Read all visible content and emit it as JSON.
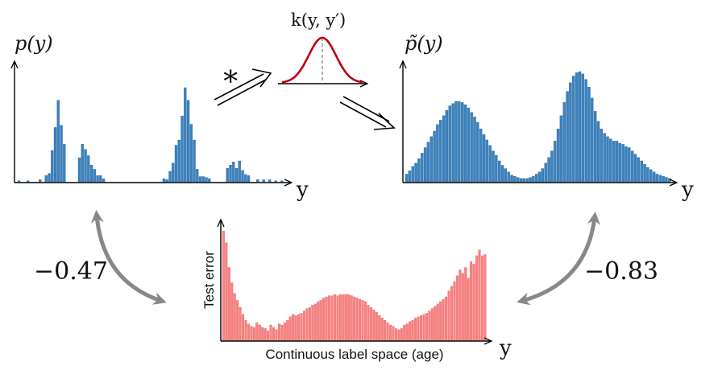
{
  "labels": {
    "p_y": "p(y)",
    "p_tilde_y": "p̃(y)",
    "kernel": "k(y, y′)",
    "convolution": "∗",
    "y_axis_symbol": "y",
    "corr_left": "−0.47",
    "corr_right": "−0.83",
    "error_ylabel": "Test error",
    "error_xlabel": "Continuous label space (age)"
  },
  "colors": {
    "histogram": "#3b82be",
    "kernel_curve": "#c0000f",
    "error_bars": "#f88080",
    "arrows": "#888888",
    "axes": "#000000"
  },
  "chart_data": [
    {
      "name": "label-distribution",
      "type": "bar",
      "values": [
        0.01,
        0,
        0,
        0.01,
        0,
        0,
        0,
        0.02,
        0,
        0.06,
        0.08,
        0.3,
        0.52,
        0.78,
        0.54,
        0.36,
        0,
        0,
        0,
        0,
        0.23,
        0.36,
        0.31,
        0.25,
        0.16,
        0.12,
        0.06,
        0.06,
        0.03,
        0,
        0,
        0,
        0,
        0,
        0,
        0,
        0,
        0,
        0,
        0,
        0,
        0,
        0,
        0,
        0,
        0,
        0,
        0,
        0.03,
        0.02,
        0.1,
        0.18,
        0.35,
        0.4,
        0.63,
        0.9,
        0.78,
        0.55,
        0.4,
        0.12,
        0.05,
        0.05,
        0.04,
        0.03,
        0,
        0,
        0,
        0,
        0,
        0.13,
        0.16,
        0.19,
        0.13,
        0.2,
        0.11,
        0.07,
        0.06,
        0,
        0,
        0.02,
        0,
        0.02,
        0,
        0.02,
        0,
        0.01,
        0,
        0.01
      ]
    },
    {
      "name": "smoothed-distribution",
      "type": "bar",
      "values": [
        0.07,
        0.1,
        0.14,
        0.17,
        0.21,
        0.26,
        0.31,
        0.36,
        0.41,
        0.46,
        0.52,
        0.56,
        0.6,
        0.65,
        0.69,
        0.71,
        0.73,
        0.73,
        0.72,
        0.7,
        0.67,
        0.63,
        0.59,
        0.54,
        0.48,
        0.43,
        0.38,
        0.33,
        0.28,
        0.24,
        0.19,
        0.15,
        0.12,
        0.09,
        0.06,
        0.05,
        0.04,
        0.03,
        0.03,
        0.03,
        0.04,
        0.05,
        0.07,
        0.09,
        0.12,
        0.17,
        0.22,
        0.28,
        0.37,
        0.48,
        0.6,
        0.72,
        0.82,
        0.9,
        0.96,
        0.99,
        1,
        0.98,
        0.93,
        0.86,
        0.76,
        0.64,
        0.55,
        0.48,
        0.44,
        0.41,
        0.39,
        0.37,
        0.37,
        0.35,
        0.34,
        0.32,
        0.31,
        0.28,
        0.25,
        0.22,
        0.19,
        0.16,
        0.13,
        0.11,
        0.09,
        0.07,
        0.06,
        0.05,
        0.04,
        0.03
      ]
    },
    {
      "name": "test-error",
      "type": "bar",
      "xlabel": "Continuous label space (age)",
      "ylabel": "Test error",
      "values": [
        0.93,
        0.83,
        0.62,
        0.49,
        0.4,
        0.34,
        0.28,
        0.22,
        0.17,
        0.14,
        0.12,
        0.11,
        0.15,
        0.13,
        0.11,
        0.1,
        0.08,
        0.13,
        0.11,
        0.09,
        0.14,
        0.13,
        0.15,
        0.17,
        0.2,
        0.22,
        0.21,
        0.22,
        0.23,
        0.25,
        0.27,
        0.28,
        0.3,
        0.31,
        0.33,
        0.34,
        0.36,
        0.37,
        0.38,
        0.38,
        0.39,
        0.38,
        0.39,
        0.39,
        0.39,
        0.39,
        0.38,
        0.37,
        0.36,
        0.35,
        0.34,
        0.33,
        0.3,
        0.28,
        0.26,
        0.24,
        0.21,
        0.19,
        0.17,
        0.15,
        0.13,
        0.12,
        0.1,
        0.09,
        0.1,
        0.13,
        0.14,
        0.16,
        0.17,
        0.19,
        0.2,
        0.21,
        0.22,
        0.23,
        0.25,
        0.27,
        0.29,
        0.31,
        0.33,
        0.35,
        0.37,
        0.42,
        0.46,
        0.5,
        0.55,
        0.6,
        0.57,
        0.62,
        0.53,
        0.67,
        0.65,
        0.72,
        0.77,
        0.72,
        0.73
      ]
    }
  ]
}
